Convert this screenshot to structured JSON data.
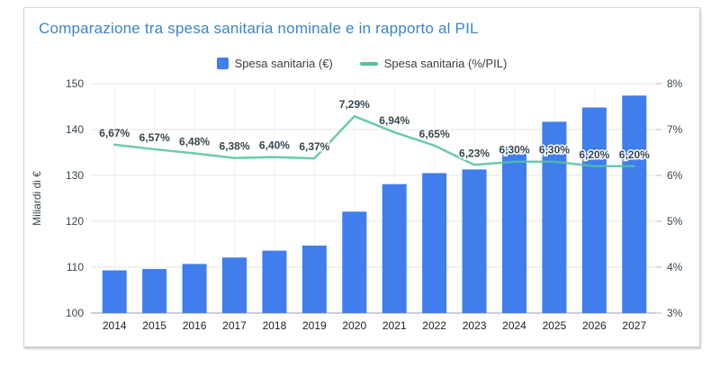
{
  "card": {
    "title": "Comparazione tra spesa sanitaria nominale e in rapporto al PIL"
  },
  "colors": {
    "title": "#3d85c6",
    "bar": "#407ded",
    "line": "#52c1a1",
    "line_label": "#57c7a5",
    "gridline": "#e6e6e6",
    "baseline": "#9aa0a6",
    "vertical_gridline": "#f3f3f3",
    "tick_mark": "#bdbdbd"
  },
  "legend": [
    {
      "label": "Spesa sanitaria (€)",
      "swatch": "square"
    },
    {
      "label": "Spesa sanitaria (%/PIL)",
      "swatch": "line"
    }
  ],
  "chart_data": {
    "type": "bar",
    "subtype": "combo-bar-line",
    "title": "Comparazione tra spesa sanitaria nominale e in rapporto al PIL",
    "categories": [
      "2014",
      "2015",
      "2016",
      "2017",
      "2018",
      "2019",
      "2020",
      "2021",
      "2022",
      "2023",
      "2024",
      "2025",
      "2026",
      "2027"
    ],
    "series": [
      {
        "name": "Spesa sanitaria (€)",
        "type": "bar",
        "axis": "left",
        "values": [
          109.3,
          109.6,
          110.7,
          112.1,
          113.6,
          114.7,
          122.1,
          128.1,
          130.5,
          131.3,
          136.3,
          141.7,
          144.8,
          147.4
        ]
      },
      {
        "name": "Spesa sanitaria (%/PIL)",
        "type": "line",
        "axis": "right",
        "values": [
          6.67,
          6.57,
          6.48,
          6.38,
          6.4,
          6.37,
          7.29,
          6.94,
          6.65,
          6.23,
          6.3,
          6.3,
          6.2,
          6.2
        ],
        "point_labels": [
          "6,67%",
          "6,57%",
          "6,48%",
          "6,38%",
          "6,40%",
          "6,37%",
          "7,29%",
          "6,94%",
          "6,65%",
          "6,23%",
          "6,30%",
          "6,30%",
          "6,20%",
          "6,20%"
        ]
      }
    ],
    "left_axis": {
      "title": "Miliardi di €",
      "min": 100,
      "max": 150,
      "tick_values": [
        100,
        110,
        120,
        130,
        140,
        150
      ],
      "tick_labels": [
        "100",
        "110",
        "120",
        "130",
        "140",
        "150"
      ]
    },
    "right_axis": {
      "min": 3,
      "max": 8,
      "tick_values": [
        3,
        4,
        5,
        6,
        7,
        8
      ],
      "tick_labels": [
        "3%",
        "4%",
        "5%",
        "6%",
        "7%",
        "8%"
      ]
    },
    "grid": "horizontal-major, faint-vertical",
    "legend_position": "top-center"
  }
}
